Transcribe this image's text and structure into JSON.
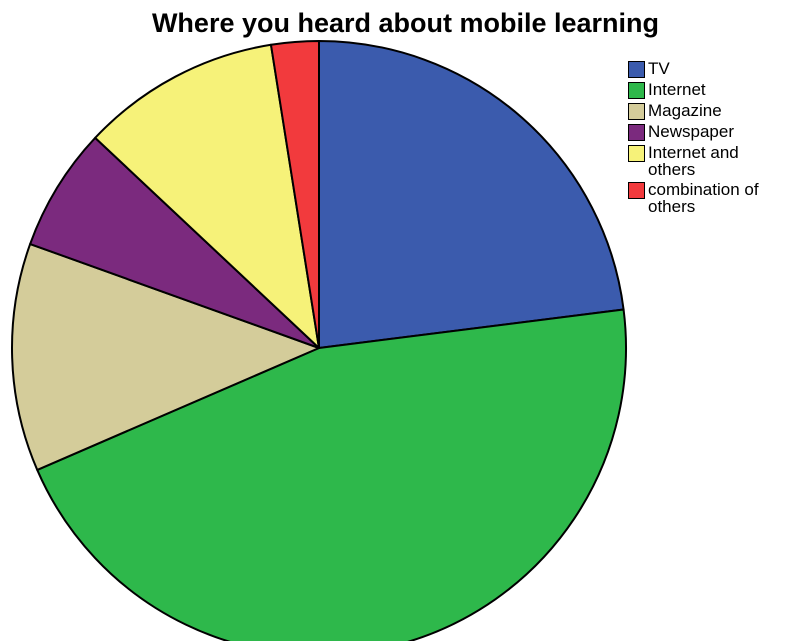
{
  "chart_data": {
    "type": "pie",
    "title": "Where you heard about mobile learning",
    "legend_position": "right",
    "start_angle_deg": 0,
    "direction": "clockwise",
    "slices": [
      {
        "label": "TV",
        "value": 23.0,
        "color": "#3b5bad"
      },
      {
        "label": "Internet",
        "value": 45.5,
        "color": "#2eb84b"
      },
      {
        "label": "Magazine",
        "value": 12.0,
        "color": "#d4cc9a"
      },
      {
        "label": "Newspaper",
        "value": 6.5,
        "color": "#7b2a7e"
      },
      {
        "label": "Internet and others",
        "value": 10.5,
        "color": "#f6f279"
      },
      {
        "label": "combination of others",
        "value": 2.5,
        "color": "#f23a3d"
      }
    ]
  }
}
